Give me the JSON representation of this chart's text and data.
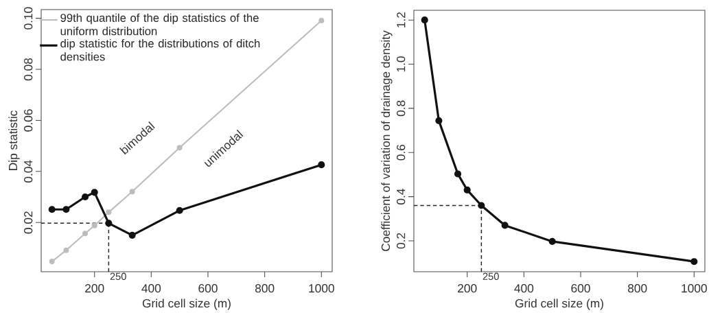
{
  "chart_data": [
    {
      "type": "line",
      "xlabel": "Grid cell size (m)",
      "ylabel": "Dip statistic",
      "x": [
        50,
        100,
        167,
        200,
        250,
        333,
        500,
        1000
      ],
      "series": [
        {
          "name": "99th quantile of the dip statistics of the uniform distribution",
          "color": "#bdbdbd",
          "values": [
            0.0047,
            0.0091,
            0.0157,
            0.0188,
            0.024,
            0.0321,
            0.0493,
            0.0991
          ]
        },
        {
          "name": "dip statistic for the distributions of ditch densities",
          "color": "#111111",
          "values": [
            0.0251,
            0.0251,
            0.03,
            0.0318,
            0.0197,
            0.015,
            0.0247,
            0.0426
          ]
        }
      ],
      "xlim": [
        12,
        1038
      ],
      "ylim": [
        0.0007,
        0.1034
      ],
      "xticks": [
        200,
        400,
        600,
        800,
        1000
      ],
      "yticks": [
        0.02,
        0.04,
        0.06,
        0.08,
        {
          "value": 0.1,
          "label": "0.10"
        }
      ],
      "ref_lines": [
        {
          "axis": "x",
          "value": 250,
          "label": "250",
          "line_style": "dashed",
          "color": "#222222"
        },
        {
          "axis": "y",
          "value": 0.0197,
          "line_style": "dashed",
          "color": "#222222"
        }
      ],
      "annotations": [
        "bimodal",
        "unimodal"
      ],
      "legend": "top left",
      "marker": "circle",
      "line_style": "solid",
      "grid": false
    },
    {
      "type": "line",
      "xlabel": "Grid cell size (m)",
      "ylabel": "Coefficient of variation of drainage density",
      "x": [
        50,
        100,
        167,
        200,
        250,
        333,
        500,
        1000
      ],
      "series": [
        {
          "color": "#111111",
          "values": [
            1.2,
            0.744,
            0.503,
            0.43,
            0.36,
            0.27,
            0.197,
            0.106
          ]
        }
      ],
      "xlim": [
        12,
        1038
      ],
      "ylim": [
        0.06,
        1.244
      ],
      "xticks": [
        200,
        400,
        600,
        800,
        1000
      ],
      "yticks": [
        0.2,
        0.4,
        0.6,
        0.8,
        {
          "value": 1.0,
          "label": "1.0"
        },
        1.2
      ],
      "ref_lines": [
        {
          "axis": "x",
          "value": 250,
          "label": "250",
          "line_style": "dashed",
          "color": "#222222"
        },
        {
          "axis": "y",
          "value": 0.36,
          "line_style": "dashed",
          "color": "#222222"
        }
      ],
      "marker": "circle",
      "line_style": "solid",
      "grid": false
    }
  ]
}
